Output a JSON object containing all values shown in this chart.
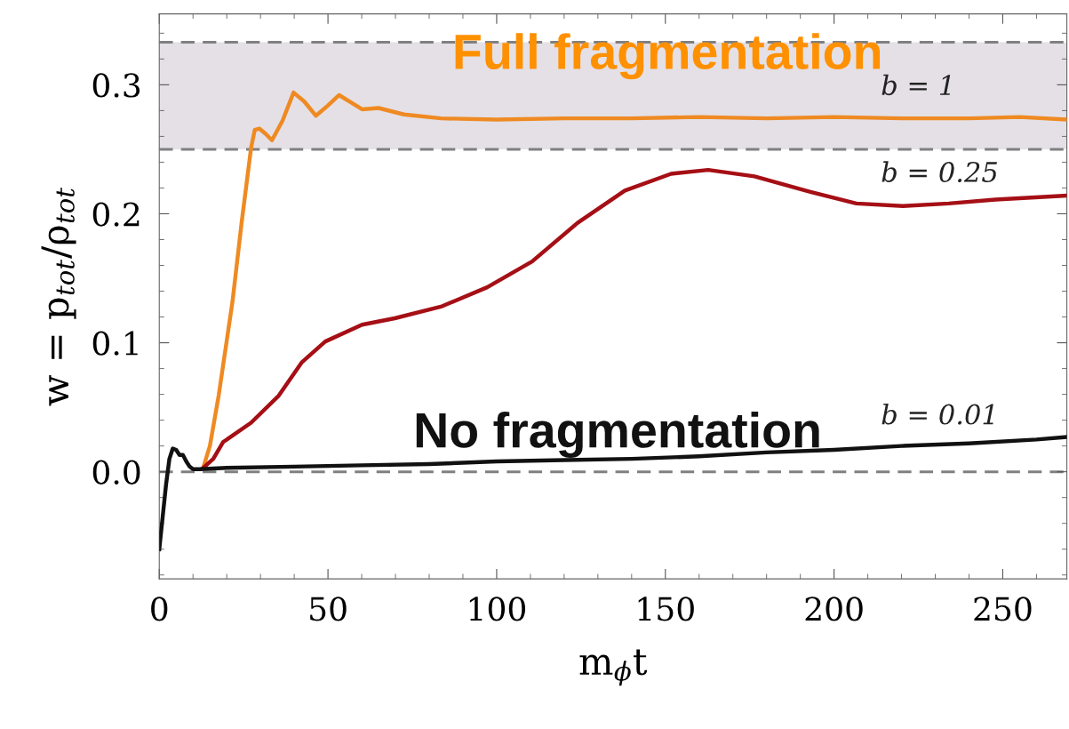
{
  "chart_data": {
    "type": "line",
    "xlabel": "m$_{ϕ}$t",
    "ylabel": "w = p$_{tot}$/ρ$_{tot}$",
    "xlim": [
      0,
      269
    ],
    "ylim": [
      -0.083,
      0.355
    ],
    "xticks": [
      0,
      50,
      100,
      150,
      200,
      250
    ],
    "yticks": [
      {
        "value": 0,
        "label": "0.0"
      },
      0.1,
      0.2,
      0.3
    ],
    "grid": false,
    "legend": false,
    "line_style": "solid",
    "marker": "none",
    "series": [
      {
        "name": "b = 1",
        "color": "#ef8a22",
        "x": [
          13,
          15,
          17.6,
          21.7,
          24.4,
          27.2,
          28.3,
          29.7,
          31.5,
          33.4,
          36.5,
          39.8,
          43,
          46.4,
          50,
          53.3,
          57,
          60.1,
          65,
          72.5,
          83.5,
          100,
          120,
          140,
          160,
          180,
          200,
          220,
          240,
          255,
          269
        ],
        "values": [
          0.003,
          0.02,
          0.059,
          0.132,
          0.193,
          0.251,
          0.265,
          0.266,
          0.262,
          0.257,
          0.272,
          0.294,
          0.287,
          0.276,
          0.284,
          0.292,
          0.286,
          0.281,
          0.282,
          0.277,
          0.274,
          0.273,
          0.274,
          0.274,
          0.275,
          0.274,
          0.275,
          0.274,
          0.274,
          0.275,
          0.273
        ]
      },
      {
        "name": "b = 0.25",
        "color": "#a50f15",
        "x": [
          13,
          16,
          18.9,
          27.2,
          35.4,
          42.3,
          49.2,
          60.1,
          69.8,
          83.5,
          97.2,
          110.5,
          124,
          138,
          151.7,
          162.7,
          176.4,
          193,
          206.6,
          220.4,
          234,
          247.8,
          268.5
        ],
        "values": [
          0.003,
          0.01,
          0.023,
          0.038,
          0.059,
          0.085,
          0.101,
          0.114,
          0.119,
          0.128,
          0.143,
          0.163,
          0.193,
          0.218,
          0.231,
          0.234,
          0.229,
          0.217,
          0.208,
          0.206,
          0.208,
          0.211,
          0.214
        ]
      },
      {
        "name": "b = 0.01",
        "color": "#111111",
        "x": [
          0,
          1,
          2,
          3,
          4,
          5,
          6,
          7,
          8,
          9,
          10,
          12,
          20,
          40,
          60,
          80,
          100,
          120,
          140,
          160,
          180,
          200,
          220,
          240,
          260,
          269
        ],
        "values": [
          -0.06,
          -0.035,
          -0.01,
          0.01,
          0.018,
          0.017,
          0.013,
          0.013,
          0.008,
          0.004,
          0.002,
          0.002,
          0.003,
          0.004,
          0.005,
          0.006,
          0.008,
          0.009,
          0.01,
          0.012,
          0.015,
          0.017,
          0.02,
          0.022,
          0.025,
          0.027
        ]
      }
    ],
    "bands": [
      {
        "axis": "y",
        "from": 0.25,
        "to": 0.333,
        "color": "#e4e0e6"
      }
    ],
    "ref_lines": [
      {
        "axis": "y",
        "value": 0.0,
        "color": "#808080",
        "line_style": "dashed"
      },
      {
        "axis": "y",
        "value": 0.25,
        "color": "#808080",
        "line_style": "dashed"
      },
      {
        "axis": "y",
        "value": 0.333,
        "color": "#808080",
        "line_style": "dashed"
      }
    ],
    "annotations": [
      "Full fragmentation",
      "No fragmentation"
    ]
  }
}
